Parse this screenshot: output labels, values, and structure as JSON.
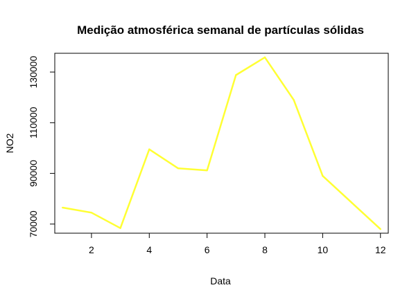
{
  "chart_data": {
    "type": "line",
    "title": "Medição atmosférica semanal de partículas sólidas",
    "xlabel": "Data",
    "ylabel": "NO2",
    "xlim": [
      0.73,
      12.27
    ],
    "ylim": [
      66400,
      137400
    ],
    "xticks": [
      2,
      4,
      6,
      8,
      10,
      12
    ],
    "yticks": [
      70000,
      90000,
      110000,
      130000
    ],
    "grid": false,
    "series": [
      {
        "color": "#ffff33",
        "x": [
          1,
          2,
          3,
          4,
          5,
          6,
          7,
          8,
          9,
          10,
          11,
          12
        ],
        "values": [
          76500,
          74500,
          68400,
          99500,
          92000,
          91200,
          128800,
          135800,
          119000,
          89000,
          78500,
          68000
        ]
      }
    ]
  }
}
